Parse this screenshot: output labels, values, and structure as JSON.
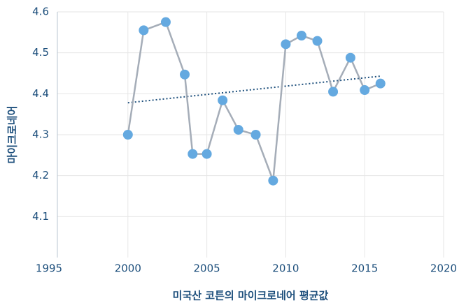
{
  "chart_data": {
    "type": "line",
    "x_label": "미국산 코튼의 마이크로네어 평균값",
    "y_label": "마이크로네어",
    "x": [
      2000,
      2001,
      2002.4,
      2003.6,
      2004.1,
      2005,
      2006,
      2007,
      2008.1,
      2009.2,
      2010,
      2011,
      2012,
      2013,
      2014.1,
      2015,
      2016
    ],
    "series": [
      {
        "color": "#64a9e0",
        "line_color": "#a5adb8",
        "values": [
          4.3,
          4.555,
          4.575,
          4.447,
          4.253,
          4.253,
          4.384,
          4.312,
          4.3,
          4.188,
          4.521,
          4.542,
          4.529,
          4.405,
          4.488,
          4.409,
          4.425
        ]
      }
    ],
    "trend": {
      "color": "#1d4f7c",
      "x": [
        2000,
        2016
      ],
      "values": [
        4.378,
        4.443
      ]
    },
    "xlim": [
      1995,
      2020
    ],
    "xticks": [
      1995,
      2000,
      2005,
      2010,
      2015,
      2020
    ],
    "ylim": [
      4.0,
      4.6
    ],
    "yticks": [
      4.1,
      4.2,
      4.3,
      4.4,
      4.5,
      4.6
    ],
    "grid": true
  }
}
